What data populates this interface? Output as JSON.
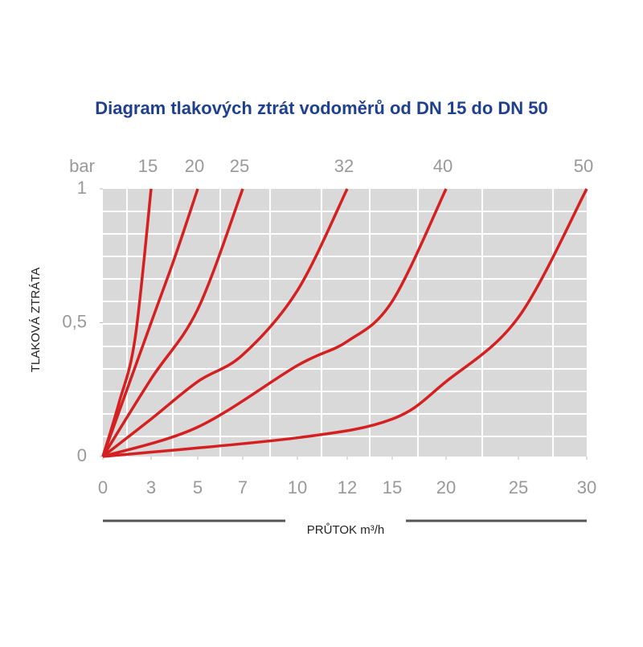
{
  "chart_data": {
    "type": "line",
    "title": "Diagram tlakových ztrát vodoměrů od DN 15 do DN 50",
    "y_unit": "bar",
    "y_label": "TLAKOVÁ ZTRÁTA",
    "x_label": "PRŮTOK m³/h",
    "ylim": [
      0,
      1
    ],
    "yticks": [
      0,
      {
        "value": 0.5,
        "label": "0,5"
      },
      1
    ],
    "xticks": [
      0,
      3,
      5,
      7,
      10,
      12,
      15,
      20,
      25,
      30
    ],
    "series": [
      {
        "name": "15",
        "color": "#d42020",
        "x": [
          0,
          1,
          2,
          3
        ],
        "values": [
          0,
          0.2,
          0.44,
          1
        ]
      },
      {
        "name": "20",
        "color": "#d42020",
        "x": [
          0,
          3,
          4,
          5
        ],
        "values": [
          0,
          0.5,
          0.74,
          1
        ]
      },
      {
        "name": "25",
        "color": "#d42020",
        "x": [
          0,
          3,
          5,
          7
        ],
        "values": [
          0,
          0.29,
          0.55,
          1
        ]
      },
      {
        "name": "32",
        "color": "#d42020",
        "x": [
          0,
          3,
          5,
          7,
          10,
          12
        ],
        "values": [
          0,
          0.14,
          0.28,
          0.38,
          0.62,
          1
        ]
      },
      {
        "name": "40",
        "color": "#d42020",
        "x": [
          0,
          5,
          10,
          12,
          15,
          20
        ],
        "values": [
          0,
          0.11,
          0.34,
          0.43,
          0.58,
          1
        ]
      },
      {
        "name": "50",
        "color": "#d42020",
        "x": [
          0,
          10,
          15,
          20,
          25,
          30
        ],
        "values": [
          0,
          0.07,
          0.14,
          0.28,
          0.52,
          1
        ]
      }
    ]
  }
}
